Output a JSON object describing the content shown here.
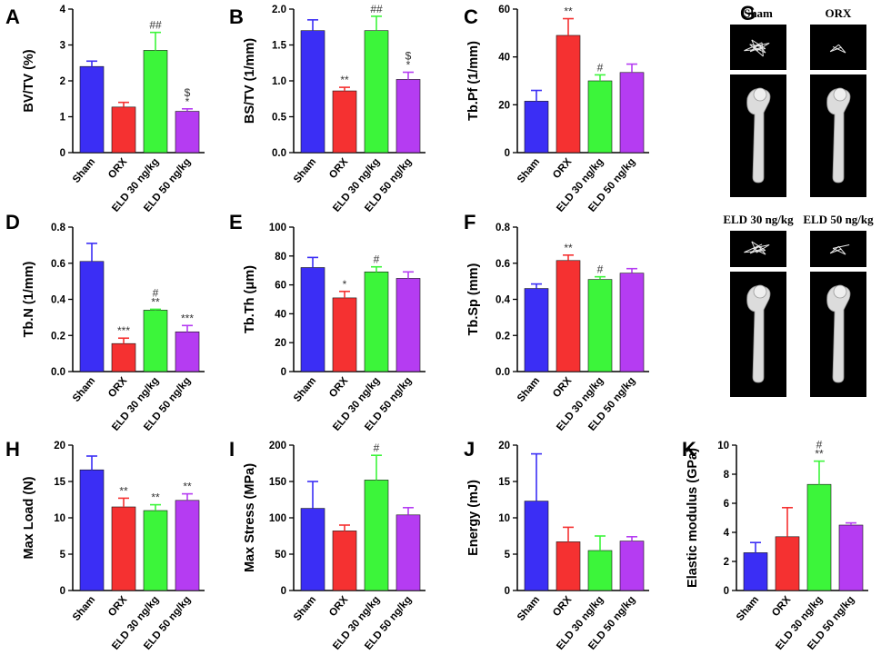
{
  "colors": {
    "sham": "#3b2ef5",
    "orx": "#f53131",
    "eld30": "#3cf53a",
    "eld50": "#b53cf2"
  },
  "chart_data": [
    {
      "panel": "A",
      "type": "bar",
      "ylabel": "BV/TV (%)",
      "ylim": [
        0,
        4
      ],
      "yticks": [
        "0",
        "1",
        "2",
        "3",
        "4"
      ],
      "categories": [
        "Sham",
        "ORX",
        "ELD 30 ng/kg",
        "ELD 50 ng/kg"
      ],
      "values": [
        2.4,
        1.27,
        2.85,
        1.15
      ],
      "errors": [
        0.15,
        0.13,
        0.5,
        0.07
      ],
      "annotations": [
        [
          "",
          "",
          ""
        ],
        [
          "",
          "",
          ""
        ],
        [
          "##",
          "",
          ""
        ],
        [
          "$",
          "*",
          ""
        ]
      ]
    },
    {
      "panel": "B",
      "type": "bar",
      "ylabel": "BS/TV (1/mm)",
      "ylim": [
        0,
        2.0
      ],
      "yticks": [
        "0.0",
        "0.5",
        "1.0",
        "1.5",
        "2.0"
      ],
      "categories": [
        "Sham",
        "ORX",
        "ELD 30 ng/kg",
        "ELD 50 ng/kg"
      ],
      "values": [
        1.7,
        0.86,
        1.7,
        1.02
      ],
      "errors": [
        0.15,
        0.05,
        0.2,
        0.1
      ],
      "annotations": [
        [
          "",
          ""
        ],
        [
          "**",
          ""
        ],
        [
          "##",
          ""
        ],
        [
          "$",
          "*"
        ]
      ]
    },
    {
      "panel": "C",
      "type": "bar",
      "ylabel": "Tb.Pf (1/mm)",
      "ylim": [
        0,
        60
      ],
      "yticks": [
        "0",
        "20",
        "40",
        "60"
      ],
      "categories": [
        "Sham",
        "ORX",
        "ELD 30 ng/kg",
        "ELD 50 ng/kg"
      ],
      "values": [
        21.5,
        49,
        30,
        33.5
      ],
      "errors": [
        4.5,
        7,
        2.5,
        3.5
      ],
      "annotations": [
        [
          "",
          ""
        ],
        [
          "**",
          ""
        ],
        [
          "#",
          ""
        ],
        [
          "",
          ""
        ]
      ]
    },
    {
      "panel": "D",
      "type": "bar",
      "ylabel": "Tb.N (1/mm)",
      "ylim": [
        0,
        0.8
      ],
      "yticks": [
        "0.0",
        "0.2",
        "0.4",
        "0.6",
        "0.8"
      ],
      "categories": [
        "Sham",
        "ORX",
        "ELD 30 ng/kg",
        "ELD 50 ng/kg"
      ],
      "values": [
        0.61,
        0.155,
        0.34,
        0.22
      ],
      "errors": [
        0.1,
        0.03,
        0.005,
        0.035
      ],
      "annotations": [
        [
          "",
          ""
        ],
        [
          "***",
          ""
        ],
        [
          "#",
          "**"
        ],
        [
          "***",
          ""
        ]
      ]
    },
    {
      "panel": "E",
      "type": "bar",
      "ylabel": "Tb.Th (μm)",
      "ylim": [
        0,
        100
      ],
      "yticks": [
        "0",
        "20",
        "40",
        "60",
        "80",
        "100"
      ],
      "categories": [
        "Sham",
        "ORX",
        "ELD 30 ng/kg",
        "ELD 50 ng/kg"
      ],
      "values": [
        72,
        51,
        69,
        64.5
      ],
      "errors": [
        7,
        4.5,
        3.5,
        4.5
      ],
      "annotations": [
        [
          "",
          ""
        ],
        [
          "*",
          ""
        ],
        [
          "#",
          ""
        ],
        [
          "",
          ""
        ]
      ]
    },
    {
      "panel": "F",
      "type": "bar",
      "ylabel": "Tb.Sp (mm)",
      "ylim": [
        0,
        0.8
      ],
      "yticks": [
        "0.0",
        "0.2",
        "0.4",
        "0.6",
        "0.8"
      ],
      "categories": [
        "Sham",
        "ORX",
        "ELD 30 ng/kg",
        "ELD 50 ng/kg"
      ],
      "values": [
        0.46,
        0.615,
        0.51,
        0.545
      ],
      "errors": [
        0.025,
        0.03,
        0.015,
        0.025
      ],
      "annotations": [
        [
          "",
          ""
        ],
        [
          "**",
          ""
        ],
        [
          "#",
          ""
        ],
        [
          "",
          ""
        ]
      ]
    },
    {
      "panel": "H",
      "type": "bar",
      "ylabel": "Max Load (N)",
      "ylim": [
        0,
        20
      ],
      "yticks": [
        "0",
        "5",
        "10",
        "15",
        "20"
      ],
      "categories": [
        "Sham",
        "ORX",
        "ELD 30 ng/kg",
        "ELD 50 ng/kg"
      ],
      "values": [
        16.6,
        11.5,
        11,
        12.4
      ],
      "errors": [
        1.9,
        1.2,
        0.8,
        0.9
      ],
      "annotations": [
        [
          "",
          ""
        ],
        [
          "**",
          ""
        ],
        [
          "**",
          ""
        ],
        [
          "**",
          ""
        ]
      ]
    },
    {
      "panel": "I",
      "type": "bar",
      "ylabel": "Max Stress (MPa)",
      "ylim": [
        0,
        200
      ],
      "yticks": [
        "0",
        "50",
        "100",
        "150",
        "200"
      ],
      "categories": [
        "Sham",
        "ORX",
        "ELD 30 ng/kg",
        "ELD 50 ng/kg"
      ],
      "values": [
        113,
        82,
        152,
        104
      ],
      "errors": [
        37,
        8,
        34,
        10
      ],
      "annotations": [
        [
          "",
          ""
        ],
        [
          "",
          ""
        ],
        [
          "#",
          ""
        ],
        [
          "",
          ""
        ]
      ]
    },
    {
      "panel": "J",
      "type": "bar",
      "ylabel": "Energy (mJ)",
      "ylim": [
        0,
        20
      ],
      "yticks": [
        "0",
        "5",
        "10",
        "15",
        "20"
      ],
      "categories": [
        "Sham",
        "ORX",
        "ELD 30 ng/kg",
        "ELD 50 ng/kg"
      ],
      "values": [
        12.3,
        6.7,
        5.5,
        6.8
      ],
      "errors": [
        6.5,
        2,
        2,
        0.6
      ],
      "annotations": [
        [
          "",
          ""
        ],
        [
          "",
          ""
        ],
        [
          "",
          ""
        ],
        [
          "",
          ""
        ]
      ]
    },
    {
      "panel": "K",
      "type": "bar",
      "ylabel": "Elastic modulus (GPa)",
      "ylim": [
        0,
        10
      ],
      "yticks": [
        "0",
        "2",
        "4",
        "6",
        "8",
        "10"
      ],
      "categories": [
        "Sham",
        "ORX",
        "ELD 30 ng/kg",
        "ELD 50 ng/kg"
      ],
      "values": [
        2.6,
        3.7,
        7.3,
        4.5
      ],
      "errors": [
        0.7,
        2,
        1.6,
        0.15
      ],
      "annotations": [
        [
          "",
          ""
        ],
        [
          "",
          ""
        ],
        [
          "#",
          "**"
        ],
        [
          "",
          ""
        ]
      ]
    }
  ],
  "microct": {
    "panel": "G",
    "labels": [
      "Sham",
      "ORX",
      "ELD 30 ng/kg",
      "ELD 50 ng/kg"
    ]
  }
}
